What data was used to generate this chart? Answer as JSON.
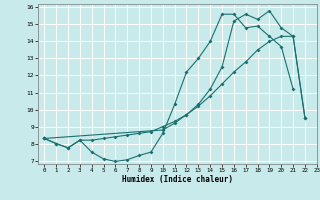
{
  "title": "",
  "xlabel": "Humidex (Indice chaleur)",
  "background_color": "#c8eaea",
  "grid_color": "#ffffff",
  "line_color": "#1a7070",
  "xlim": [
    -0.5,
    23
  ],
  "ylim": [
    6.8,
    16.2
  ],
  "xticks": [
    0,
    1,
    2,
    3,
    4,
    5,
    6,
    7,
    8,
    9,
    10,
    11,
    12,
    13,
    14,
    15,
    16,
    17,
    18,
    19,
    20,
    21,
    22,
    23
  ],
  "yticks": [
    7,
    8,
    9,
    10,
    11,
    12,
    13,
    14,
    15,
    16
  ],
  "line1_x": [
    0,
    1,
    2,
    3,
    4,
    5,
    6,
    7,
    8,
    9,
    10,
    11,
    12,
    13,
    14,
    15,
    16,
    17,
    18,
    19,
    20,
    21
  ],
  "line1_y": [
    8.3,
    8.0,
    7.75,
    8.2,
    7.5,
    7.1,
    6.95,
    7.05,
    7.3,
    7.5,
    8.6,
    10.3,
    12.2,
    13.0,
    14.0,
    15.6,
    15.6,
    14.8,
    14.9,
    14.3,
    13.7,
    11.2
  ],
  "line2_x": [
    0,
    1,
    2,
    3,
    4,
    5,
    6,
    7,
    8,
    9,
    10,
    11,
    12,
    13,
    14,
    15,
    16,
    17,
    18,
    19,
    20,
    21,
    22
  ],
  "line2_y": [
    8.3,
    8.0,
    7.75,
    8.2,
    8.2,
    8.3,
    8.4,
    8.5,
    8.6,
    8.7,
    9.0,
    9.3,
    9.7,
    10.2,
    10.8,
    11.5,
    12.2,
    12.8,
    13.5,
    14.0,
    14.3,
    14.3,
    9.5
  ],
  "line3_x": [
    0,
    10,
    11,
    12,
    13,
    14,
    15,
    16,
    17,
    18,
    19,
    20,
    21,
    22
  ],
  "line3_y": [
    8.3,
    8.8,
    9.2,
    9.7,
    10.3,
    11.2,
    12.5,
    15.2,
    15.6,
    15.3,
    15.8,
    14.8,
    14.3,
    9.5
  ]
}
